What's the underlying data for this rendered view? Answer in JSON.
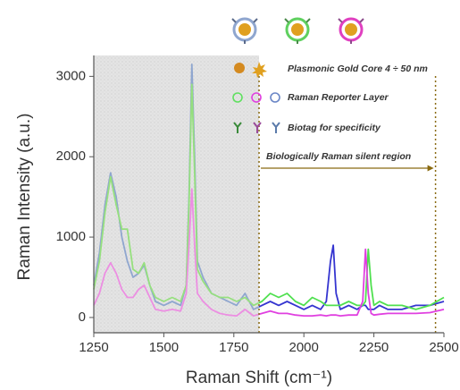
{
  "chart_data": {
    "type": "line",
    "x_label": "Raman Shift (cm⁻¹)",
    "y_label": "Raman Intensity (a.u.)",
    "xlim": [
      1250,
      2500
    ],
    "xticks": [
      1250,
      1500,
      1750,
      2000,
      2250,
      2500
    ],
    "ylim": [
      -190,
      3260
    ],
    "yticks": [
      0,
      1000,
      2000,
      3000
    ],
    "silent_region": [
      1840,
      2470
    ],
    "annotations": [
      "Plasmonic Gold Core 4 ÷ 50 nm",
      "Raman Reporter Layer",
      "Biotag for specificity",
      "Biologically Raman silent region"
    ],
    "x": [
      1250,
      1270,
      1290,
      1310,
      1330,
      1350,
      1370,
      1390,
      1410,
      1430,
      1450,
      1470,
      1500,
      1530,
      1560,
      1580,
      1590,
      1600,
      1610,
      1620,
      1640,
      1670,
      1700,
      1730,
      1760,
      1790,
      1820,
      1850,
      1880,
      1910,
      1940,
      1970,
      2000,
      2030,
      2060,
      2080,
      2095,
      2105,
      2115,
      2130,
      2160,
      2190,
      2210,
      2220,
      2230,
      2240,
      2250,
      2270,
      2300,
      2350,
      2400,
      2450,
      2500
    ],
    "series": [
      {
        "color": "#8fa6cf",
        "silent_color": "#3535d0",
        "values": [
          400,
          800,
          1400,
          1800,
          1500,
          1000,
          700,
          500,
          550,
          650,
          400,
          200,
          150,
          200,
          150,
          400,
          1500,
          3150,
          2000,
          700,
          500,
          300,
          250,
          200,
          150,
          300,
          100,
          150,
          200,
          150,
          200,
          150,
          100,
          150,
          100,
          200,
          700,
          900,
          300,
          100,
          150,
          100,
          150,
          150,
          100,
          100,
          100,
          150,
          100,
          100,
          150,
          150,
          200
        ]
      },
      {
        "color": "#96e07e",
        "silent_color": "#4fe04f",
        "values": [
          350,
          700,
          1300,
          1750,
          1400,
          1100,
          1100,
          600,
          550,
          680,
          400,
          250,
          200,
          250,
          200,
          400,
          1400,
          2900,
          1800,
          600,
          450,
          300,
          250,
          250,
          200,
          250,
          150,
          200,
          300,
          250,
          300,
          200,
          150,
          250,
          200,
          150,
          150,
          150,
          150,
          150,
          200,
          150,
          150,
          200,
          850,
          400,
          150,
          200,
          150,
          150,
          100,
          150,
          250
        ]
      },
      {
        "color": "#ec8ee2",
        "silent_color": "#e040e0",
        "values": [
          150,
          300,
          550,
          680,
          550,
          350,
          250,
          250,
          350,
          400,
          250,
          100,
          80,
          100,
          80,
          300,
          900,
          1600,
          900,
          300,
          200,
          100,
          50,
          30,
          20,
          100,
          20,
          50,
          80,
          50,
          50,
          30,
          20,
          20,
          30,
          20,
          30,
          30,
          30,
          20,
          30,
          30,
          200,
          850,
          300,
          50,
          30,
          40,
          50,
          50,
          50,
          60,
          100
        ]
      }
    ]
  }
}
